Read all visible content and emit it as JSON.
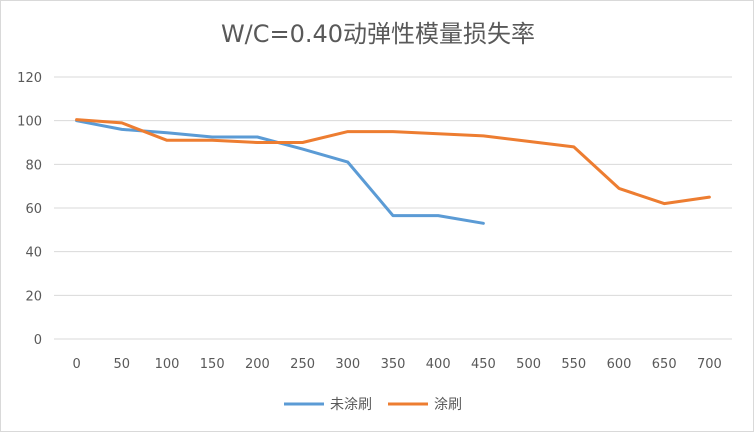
{
  "chart_data": {
    "type": "line",
    "title": "W/C=0.40动弹性模量损失率",
    "xlabel": "",
    "ylabel": "",
    "x": [
      0,
      50,
      100,
      150,
      200,
      250,
      300,
      350,
      400,
      450,
      500,
      550,
      600,
      650,
      700
    ],
    "ylim": [
      0,
      120
    ],
    "yticks": [
      0,
      20,
      40,
      60,
      80,
      100,
      120
    ],
    "grid": true,
    "legend_position": "bottom",
    "series": [
      {
        "name": "未涂刷",
        "color": "#5b9bd5",
        "x": [
          0,
          50,
          100,
          150,
          200,
          250,
          300,
          350,
          400,
          450
        ],
        "values": [
          100,
          96,
          94.5,
          92.5,
          92.5,
          87,
          81,
          56.5,
          56.5,
          53
        ]
      },
      {
        "name": "涂刷",
        "color": "#ed7d31",
        "x": [
          0,
          50,
          100,
          150,
          200,
          250,
          300,
          350,
          400,
          450,
          500,
          550,
          600,
          650,
          700
        ],
        "values": [
          100.5,
          99,
          91,
          91,
          90,
          90,
          95,
          95,
          94,
          93,
          90.5,
          88,
          69,
          62,
          65
        ]
      }
    ]
  }
}
